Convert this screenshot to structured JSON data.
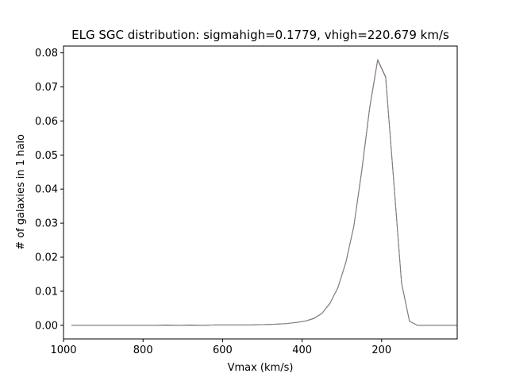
{
  "chart_data": {
    "type": "line",
    "title": "ELG SGC distribution: sigmahigh=0.1779, vhigh=220.679 km/s",
    "xlabel": "Vmax (km/s)",
    "ylabel": "# of galaxies in 1 halo",
    "xlim": [
      1000,
      10
    ],
    "ylim": [
      -0.004,
      0.082
    ],
    "x_inverted": true,
    "xticks": [
      1000,
      800,
      600,
      400,
      200
    ],
    "xtick_labels": [
      "1000",
      "800",
      "600",
      "400",
      "200"
    ],
    "yticks": [
      0.0,
      0.01,
      0.02,
      0.03,
      0.04,
      0.05,
      0.06,
      0.07,
      0.08
    ],
    "ytick_labels": [
      "0.00",
      "0.01",
      "0.02",
      "0.03",
      "0.04",
      "0.05",
      "0.06",
      "0.07",
      "0.08"
    ],
    "grid": false,
    "series": [
      {
        "color": "#8c564b",
        "x": [
          980,
          950,
          920,
          890,
          860,
          830,
          800,
          770,
          740,
          710,
          680,
          650,
          620,
          590,
          560,
          530,
          500,
          470,
          440,
          410,
          390,
          370,
          350,
          330,
          310,
          290,
          270,
          250,
          230,
          210,
          190,
          170,
          150,
          130,
          110,
          90,
          70,
          50,
          30,
          10
        ],
        "y": [
          0.0,
          0.0,
          0.0,
          0.0,
          0.0,
          0.0,
          0.0,
          0.0,
          0.0001,
          0.0,
          0.0001,
          0.0,
          0.0001,
          0.0001,
          0.0001,
          0.0001,
          0.0002,
          0.0003,
          0.0005,
          0.0009,
          0.0013,
          0.002,
          0.0035,
          0.0065,
          0.011,
          0.0185,
          0.029,
          0.0455,
          0.064,
          0.078,
          0.073,
          0.043,
          0.0125,
          0.0012,
          0.0,
          0.0,
          0.0,
          0.0,
          0.0,
          0.0
        ]
      },
      {
        "color": "#7f7f7f",
        "x": [
          980,
          950,
          920,
          890,
          860,
          830,
          800,
          770,
          740,
          710,
          680,
          650,
          620,
          590,
          560,
          530,
          500,
          470,
          440,
          410,
          390,
          370,
          350,
          330,
          310,
          290,
          270,
          250,
          230,
          210,
          190,
          170,
          150,
          130,
          110,
          90,
          70,
          50,
          30,
          10
        ],
        "y": [
          0.0,
          0.0,
          0.0,
          0.0,
          0.0,
          0.0,
          0.0,
          0.0,
          0.0,
          0.0,
          0.0,
          0.0,
          0.0001,
          0.0001,
          0.0001,
          0.0001,
          0.0002,
          0.0003,
          0.0005,
          0.0009,
          0.0013,
          0.0021,
          0.0035,
          0.0064,
          0.0111,
          0.0184,
          0.0291,
          0.0452,
          0.0638,
          0.0778,
          0.0728,
          0.0428,
          0.0124,
          0.0012,
          0.0,
          0.0,
          0.0,
          0.0,
          0.0,
          0.0
        ]
      }
    ]
  }
}
